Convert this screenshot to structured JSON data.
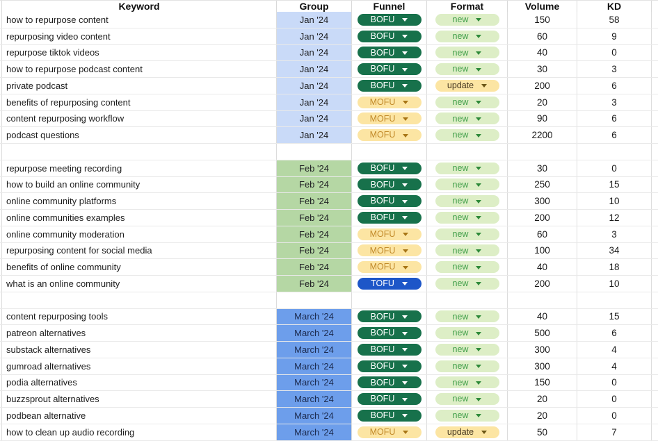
{
  "columns": [
    "Keyword",
    "Group",
    "Funnel",
    "Format",
    "Volume",
    "KD"
  ],
  "chips": {
    "BOFU": {
      "bg": "#17714b",
      "text": "#ffffff",
      "arrow": "#ffffff"
    },
    "MOFU": {
      "bg": "#fce5a3",
      "text": "#c28a2a",
      "arrow": "#a87617"
    },
    "TOFU": {
      "bg": "#1d56c8",
      "text": "#ffffff",
      "arrow": "#ffffff"
    },
    "new": {
      "bg": "#ddeec6",
      "text": "#43a04b",
      "arrow": "#2f8a3a"
    },
    "update": {
      "bg": "#fce5a3",
      "text": "#473821",
      "arrow": "#6b5616"
    }
  },
  "groups": {
    "Jan '24": {
      "bg": "#c9daf8",
      "text": "#202124"
    },
    "Feb '24": {
      "bg": "#b5d7a4",
      "text": "#202124"
    },
    "March '24": {
      "bg": "#6d9eeb",
      "text": "#1c2b4f"
    }
  },
  "bottom_bar_color": "#2a58a6",
  "rows": [
    {
      "keyword": "how to repurpose content",
      "group": "Jan '24",
      "funnel": "BOFU",
      "format": "new",
      "volume": 150,
      "kd": 58
    },
    {
      "keyword": "repurposing video content",
      "group": "Jan '24",
      "funnel": "BOFU",
      "format": "new",
      "volume": 60,
      "kd": 9
    },
    {
      "keyword": "repurpose tiktok videos",
      "group": "Jan '24",
      "funnel": "BOFU",
      "format": "new",
      "volume": 40,
      "kd": 0
    },
    {
      "keyword": "how to repurpose podcast content",
      "group": "Jan '24",
      "funnel": "BOFU",
      "format": "new",
      "volume": 30,
      "kd": 3
    },
    {
      "keyword": "private podcast",
      "group": "Jan '24",
      "funnel": "BOFU",
      "format": "update",
      "volume": 200,
      "kd": 6
    },
    {
      "keyword": "benefits of repurposing content",
      "group": "Jan '24",
      "funnel": "MOFU",
      "format": "new",
      "volume": 20,
      "kd": 3
    },
    {
      "keyword": "content repurposing workflow",
      "group": "Jan '24",
      "funnel": "MOFU",
      "format": "new",
      "volume": 90,
      "kd": 6
    },
    {
      "keyword": "podcast questions",
      "group": "Jan '24",
      "funnel": "MOFU",
      "format": "new",
      "volume": 2200,
      "kd": 6
    },
    {
      "blank": true
    },
    {
      "keyword": "repurpose meeting recording",
      "group": "Feb '24",
      "funnel": "BOFU",
      "format": "new",
      "volume": 30,
      "kd": 0
    },
    {
      "keyword": "how to build an online community",
      "group": "Feb '24",
      "funnel": "BOFU",
      "format": "new",
      "volume": 250,
      "kd": 15
    },
    {
      "keyword": "online community platforms",
      "group": "Feb '24",
      "funnel": "BOFU",
      "format": "new",
      "volume": 300,
      "kd": 10
    },
    {
      "keyword": "online communities examples",
      "group": "Feb '24",
      "funnel": "BOFU",
      "format": "new",
      "volume": 200,
      "kd": 12
    },
    {
      "keyword": "online community moderation",
      "group": "Feb '24",
      "funnel": "MOFU",
      "format": "new",
      "volume": 60,
      "kd": 3
    },
    {
      "keyword": "repurposing content for social media",
      "group": "Feb '24",
      "funnel": "MOFU",
      "format": "new",
      "volume": 100,
      "kd": 34
    },
    {
      "keyword": "benefits of online community",
      "group": "Feb '24",
      "funnel": "MOFU",
      "format": "new",
      "volume": 40,
      "kd": 18
    },
    {
      "keyword": "what is an online community",
      "group": "Feb '24",
      "funnel": "TOFU",
      "format": "new",
      "volume": 200,
      "kd": 10
    },
    {
      "blank": true
    },
    {
      "keyword": "content repurposing tools",
      "group": "March '24",
      "funnel": "BOFU",
      "format": "new",
      "volume": 40,
      "kd": 15
    },
    {
      "keyword": "patreon alternatives",
      "group": "March '24",
      "funnel": "BOFU",
      "format": "new",
      "volume": 500,
      "kd": 6
    },
    {
      "keyword": "substack alternatives",
      "group": "March '24",
      "funnel": "BOFU",
      "format": "new",
      "volume": 300,
      "kd": 4
    },
    {
      "keyword": "gumroad alternatives",
      "group": "March '24",
      "funnel": "BOFU",
      "format": "new",
      "volume": 300,
      "kd": 4
    },
    {
      "keyword": "podia alternatives",
      "group": "March '24",
      "funnel": "BOFU",
      "format": "new",
      "volume": 150,
      "kd": 0
    },
    {
      "keyword": "buzzsprout alternatives",
      "group": "March '24",
      "funnel": "BOFU",
      "format": "new",
      "volume": 20,
      "kd": 0
    },
    {
      "keyword": "podbean alternative",
      "group": "March '24",
      "funnel": "BOFU",
      "format": "new",
      "volume": 20,
      "kd": 0
    },
    {
      "keyword": "how to clean up audio recording",
      "group": "March '24",
      "funnel": "MOFU",
      "format": "update",
      "volume": 50,
      "kd": 7
    }
  ]
}
